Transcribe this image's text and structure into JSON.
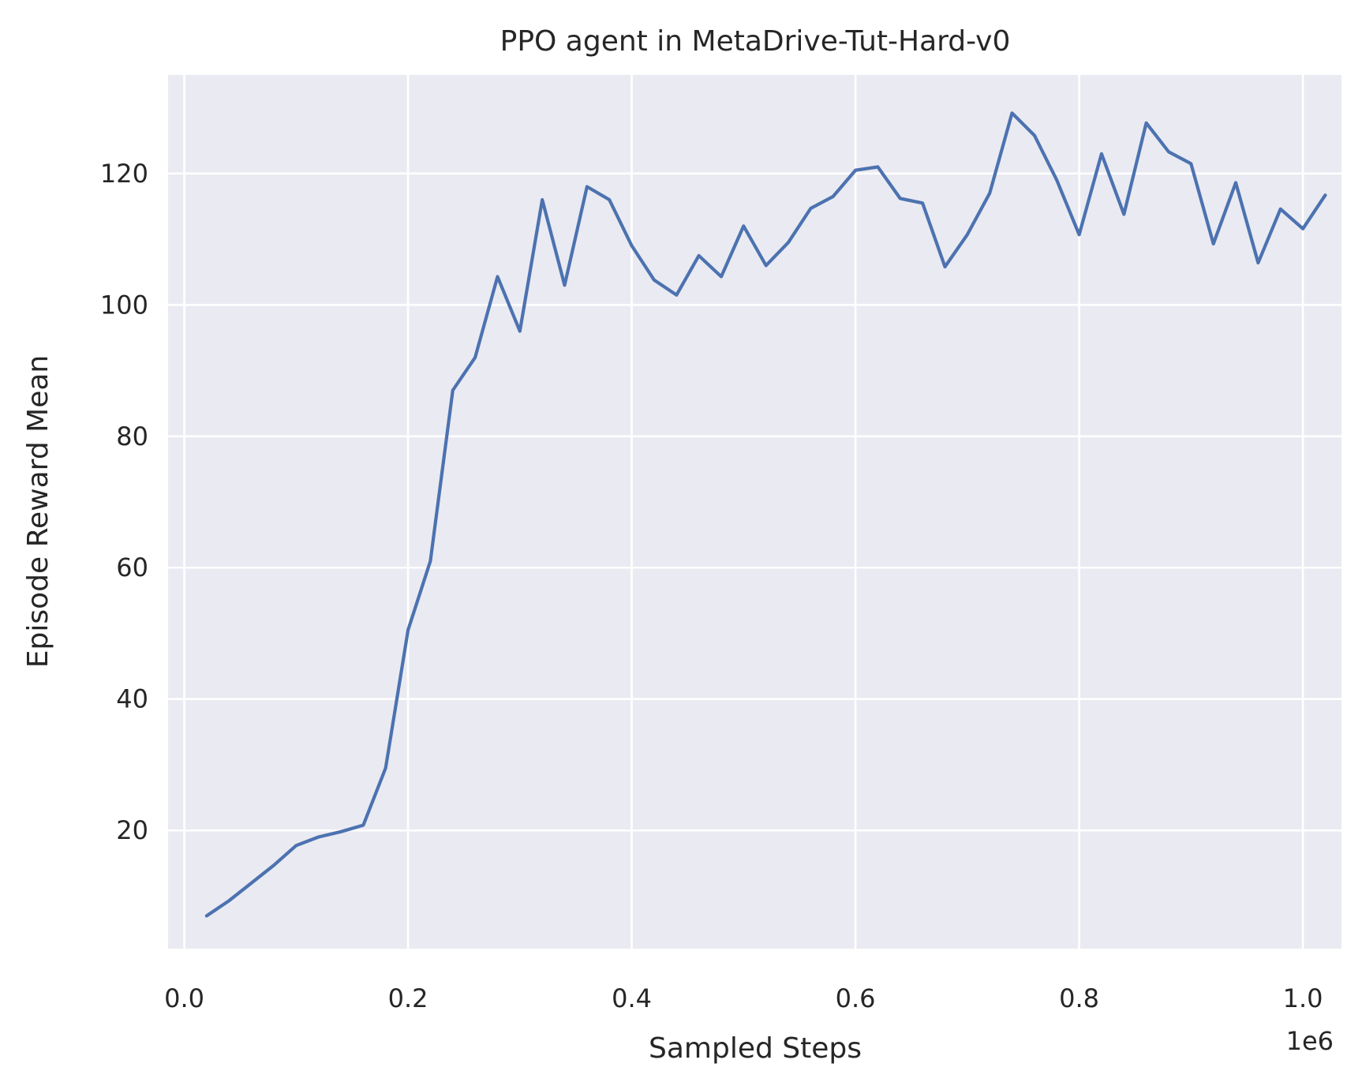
{
  "chart_data": {
    "type": "line",
    "title": "PPO agent in MetaDrive-Tut-Hard-v0",
    "xlabel": "Sampled Steps",
    "ylabel": "Episode Reward Mean",
    "x_offset_label": "1e6",
    "xlim": [
      -0.0145,
      1.0345
    ],
    "ylim": [
      2.0,
      135.0
    ],
    "x_ticks": [
      0.0,
      0.2,
      0.4,
      0.6,
      0.8,
      1.0
    ],
    "x_tick_labels": [
      "0.0",
      "0.2",
      "0.4",
      "0.6",
      "0.8",
      "1.0"
    ],
    "y_ticks": [
      20,
      40,
      60,
      80,
      100,
      120
    ],
    "y_tick_labels": [
      "20",
      "40",
      "60",
      "80",
      "100",
      "120"
    ],
    "grid": true,
    "colors": {
      "background": "#eaeaf2",
      "grid": "#ffffff",
      "line": "#4c72b0"
    },
    "series": [
      {
        "x": [
          0.02,
          0.04,
          0.06,
          0.08,
          0.1,
          0.12,
          0.14,
          0.16,
          0.18,
          0.2,
          0.22,
          0.24,
          0.26,
          0.28,
          0.3,
          0.32,
          0.34,
          0.36,
          0.38,
          0.4,
          0.42,
          0.44,
          0.46,
          0.48,
          0.5,
          0.52,
          0.54,
          0.56,
          0.58,
          0.6,
          0.62,
          0.64,
          0.66,
          0.68,
          0.7,
          0.72,
          0.74,
          0.76,
          0.78,
          0.8,
          0.82,
          0.84,
          0.86,
          0.88,
          0.9,
          0.92,
          0.94,
          0.96,
          0.98,
          1.0,
          1.02
        ],
        "values": [
          7.0,
          9.3,
          12.0,
          14.7,
          17.7,
          19.0,
          19.8,
          20.8,
          29.5,
          50.5,
          61.0,
          87.0,
          92.0,
          104.3,
          96.0,
          116.0,
          103.0,
          118.0,
          116.0,
          109.0,
          103.8,
          101.5,
          107.5,
          104.3,
          112.0,
          106.0,
          109.5,
          114.7,
          116.5,
          120.5,
          121.0,
          116.2,
          115.5,
          105.8,
          110.7,
          117.0,
          129.2,
          125.8,
          119.0,
          110.7,
          123.0,
          113.8,
          127.7,
          123.3,
          121.5,
          109.3,
          118.6,
          106.4,
          114.6,
          111.6,
          116.7
        ]
      }
    ]
  }
}
